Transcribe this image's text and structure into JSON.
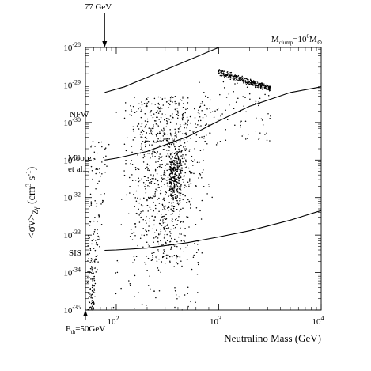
{
  "chart_data": {
    "type": "scatter",
    "xlabel": "Neutralino Mass  (GeV)",
    "ylabel_main": "<σv>",
    "ylabel_sub": "Zγ",
    "ylabel_unit": "(cm",
    "ylabel_unit_sup1": "3",
    "ylabel_unit_mid": "s",
    "ylabel_unit_sup2": "-1",
    "ylabel_unit_end": ")",
    "x_scale": "log",
    "y_scale": "log",
    "xlim": [
      50,
      10000
    ],
    "ylim": [
      1e-35,
      1e-28
    ],
    "x_ticks": [
      {
        "value": 100,
        "base": "10",
        "exp": "2"
      },
      {
        "value": 1000,
        "base": "10",
        "exp": "3"
      },
      {
        "value": 10000,
        "base": "10",
        "exp": "4"
      }
    ],
    "y_ticks": [
      {
        "value": 1e-28,
        "base": "10",
        "exp": "-28"
      },
      {
        "value": 1e-29,
        "base": "10",
        "exp": "-29"
      },
      {
        "value": 1e-30,
        "base": "10",
        "exp": "-30"
      },
      {
        "value": 1e-31,
        "base": "10",
        "exp": "-31"
      },
      {
        "value": 1e-32,
        "base": "10",
        "exp": "-32"
      },
      {
        "value": 1e-33,
        "base": "10",
        "exp": "-33"
      },
      {
        "value": 1e-34,
        "base": "10",
        "exp": "-34"
      },
      {
        "value": 1e-35,
        "base": "10",
        "exp": "-35"
      }
    ],
    "clump_label": {
      "m": "M",
      "m_sub": "clump",
      "eq": "=10",
      "exp": "6",
      "msun": "M",
      "msun_sub": "⊙"
    },
    "arrows": [
      {
        "label": "77 GeV",
        "x": 77,
        "position": "top"
      },
      {
        "label_main": "E",
        "label_sub": "th",
        "label_rest": "=50GeV",
        "x": 50,
        "position": "bottom"
      }
    ],
    "curves": [
      {
        "name": "NFW",
        "points": [
          [
            77,
            6.3e-30
          ],
          [
            120,
            8.9e-30
          ],
          [
            200,
            1.6e-29
          ],
          [
            500,
            4.5e-29
          ],
          [
            1000,
            1e-28
          ],
          [
            2000,
            2e-28
          ]
        ]
      },
      {
        "name": "Moore et al.",
        "points": [
          [
            77,
            1e-31
          ],
          [
            100,
            1.12e-31
          ],
          [
            200,
            1.7e-31
          ],
          [
            500,
            4.2e-31
          ],
          [
            1000,
            1.1e-30
          ],
          [
            2000,
            2.7e-30
          ],
          [
            5000,
            6.3e-30
          ],
          [
            10000,
            8.9e-30
          ]
        ]
      },
      {
        "name": "SIS",
        "points": [
          [
            77,
            3.9e-34
          ],
          [
            100,
            4e-34
          ],
          [
            200,
            4.5e-34
          ],
          [
            500,
            6.3e-34
          ],
          [
            1000,
            8.9e-34
          ],
          [
            2000,
            1.3e-33
          ],
          [
            5000,
            2.5e-33
          ],
          [
            10000,
            4.5e-33
          ]
        ]
      }
    ],
    "scatter_regions": [
      {
        "name": "main-cloud",
        "n": 900,
        "x_range": [
          77,
          900
        ],
        "y_log_range": [
          -33.8,
          -29.3
        ],
        "x_peak": 300
      },
      {
        "name": "dense-column",
        "n": 280,
        "x_range": [
          330,
          430
        ],
        "y_log_range": [
          -32.6,
          -30.3
        ]
      },
      {
        "name": "threshold-band",
        "n": 190,
        "x_range": [
          50,
          77
        ],
        "y_log_range": [
          -35,
          -30.5
        ]
      },
      {
        "name": "upper-right-cluster",
        "n": 300,
        "x_range": [
          1000,
          3200
        ],
        "y_log_range": [
          -29.15,
          -28.6
        ]
      },
      {
        "name": "upper-right-halo",
        "n": 90,
        "x_range": [
          600,
          3300
        ],
        "y_log_range": [
          -30.6,
          -28.9
        ]
      },
      {
        "name": "sparse-low",
        "n": 60,
        "x_range": [
          90,
          700
        ],
        "y_log_range": [
          -35,
          -33.5
        ]
      }
    ]
  }
}
